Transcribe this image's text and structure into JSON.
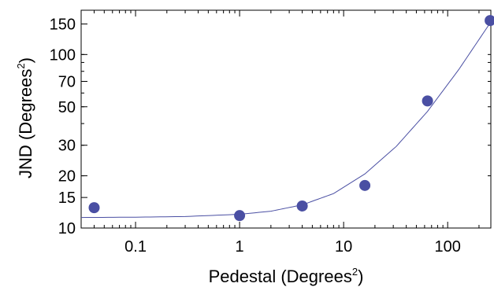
{
  "chart_data": {
    "type": "scatter",
    "xlabel": {
      "text": "Pedestal (Degrees",
      "superscript": "2",
      "suffix": ")"
    },
    "ylabel": {
      "text": "JND (Degrees",
      "superscript": "2",
      "suffix": ")"
    },
    "x_scale": "log",
    "y_scale": "log",
    "xlim": [
      0.03,
      260
    ],
    "ylim": [
      10,
      180
    ],
    "x_ticks": [
      {
        "value": 0.1,
        "label": "0.1"
      },
      {
        "value": 1,
        "label": "1"
      },
      {
        "value": 10,
        "label": "10"
      },
      {
        "value": 100,
        "label": "100"
      }
    ],
    "y_ticks": [
      {
        "value": 10,
        "label": "10"
      },
      {
        "value": 15,
        "label": "15"
      },
      {
        "value": 20,
        "label": "20"
      },
      {
        "value": 30,
        "label": "30"
      },
      {
        "value": 50,
        "label": "50"
      },
      {
        "value": 70,
        "label": "70"
      },
      {
        "value": 100,
        "label": "100"
      },
      {
        "value": 150,
        "label": "150"
      }
    ],
    "points": [
      {
        "x": 0.04,
        "y": 13.1
      },
      {
        "x": 1,
        "y": 11.8
      },
      {
        "x": 4,
        "y": 13.4
      },
      {
        "x": 16,
        "y": 17.6
      },
      {
        "x": 64,
        "y": 54
      },
      {
        "x": 256,
        "y": 157
      }
    ],
    "fit_curve": [
      {
        "x": 0.03,
        "y": 11.5
      },
      {
        "x": 0.1,
        "y": 11.55
      },
      {
        "x": 0.3,
        "y": 11.65
      },
      {
        "x": 1,
        "y": 12.0
      },
      {
        "x": 2,
        "y": 12.5
      },
      {
        "x": 4,
        "y": 13.6
      },
      {
        "x": 8,
        "y": 15.8
      },
      {
        "x": 16,
        "y": 20.5
      },
      {
        "x": 32,
        "y": 29.5
      },
      {
        "x": 64,
        "y": 47
      },
      {
        "x": 128,
        "y": 82
      },
      {
        "x": 256,
        "y": 152
      }
    ],
    "colors": {
      "points": "#4a4fa3",
      "curve": "#4a4fa3",
      "axes": "#000000"
    },
    "grid": false,
    "legend": "none"
  }
}
